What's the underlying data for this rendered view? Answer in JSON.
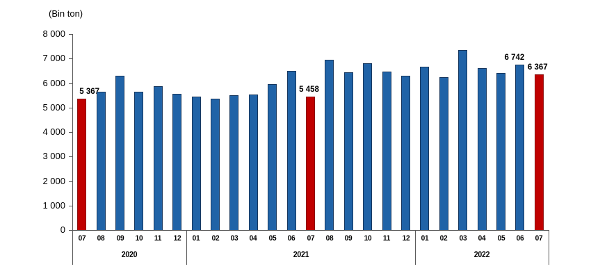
{
  "colors": {
    "bar_blue": "#2063a7",
    "bar_blue_border": "#17375e",
    "bar_red": "#c00000",
    "bar_red_border": "#8b1010",
    "axis": "#595959",
    "text": "#000000"
  },
  "chart_data": {
    "type": "bar",
    "title": "",
    "unit_label": "(Bin ton)",
    "xlabel": "",
    "ylabel": "",
    "ylim": [
      0,
      8000
    ],
    "ytick_step": 1000,
    "ytick_labels": [
      "0",
      "1 000",
      "2 000",
      "3 000",
      "4 000",
      "5 000",
      "6 000",
      "7 000",
      "8 000"
    ],
    "grid": false,
    "legend": "none",
    "year_groups": [
      {
        "label": "2020",
        "count": 6
      },
      {
        "label": "2021",
        "count": 12
      },
      {
        "label": "2022",
        "count": 7
      }
    ],
    "points": [
      {
        "year": "2020",
        "month": "07",
        "value": 5367,
        "highlight": true,
        "label": "5 367"
      },
      {
        "year": "2020",
        "month": "08",
        "value": 5650,
        "highlight": false,
        "label": null
      },
      {
        "year": "2020",
        "month": "09",
        "value": 6310,
        "highlight": false,
        "label": null
      },
      {
        "year": "2020",
        "month": "10",
        "value": 5650,
        "highlight": false,
        "label": null
      },
      {
        "year": "2020",
        "month": "11",
        "value": 5860,
        "highlight": false,
        "label": null
      },
      {
        "year": "2020",
        "month": "12",
        "value": 5560,
        "highlight": false,
        "label": null
      },
      {
        "year": "2021",
        "month": "01",
        "value": 5460,
        "highlight": false,
        "label": null
      },
      {
        "year": "2021",
        "month": "02",
        "value": 5360,
        "highlight": false,
        "label": null
      },
      {
        "year": "2021",
        "month": "03",
        "value": 5500,
        "highlight": false,
        "label": null
      },
      {
        "year": "2021",
        "month": "04",
        "value": 5530,
        "highlight": false,
        "label": null
      },
      {
        "year": "2021",
        "month": "05",
        "value": 5950,
        "highlight": false,
        "label": null
      },
      {
        "year": "2021",
        "month": "06",
        "value": 6500,
        "highlight": false,
        "label": null
      },
      {
        "year": "2021",
        "month": "07",
        "value": 5458,
        "highlight": true,
        "label": "5 458"
      },
      {
        "year": "2021",
        "month": "08",
        "value": 6950,
        "highlight": false,
        "label": null
      },
      {
        "year": "2021",
        "month": "09",
        "value": 6430,
        "highlight": false,
        "label": null
      },
      {
        "year": "2021",
        "month": "10",
        "value": 6800,
        "highlight": false,
        "label": null
      },
      {
        "year": "2021",
        "month": "11",
        "value": 6460,
        "highlight": false,
        "label": null
      },
      {
        "year": "2021",
        "month": "12",
        "value": 6290,
        "highlight": false,
        "label": null
      },
      {
        "year": "2022",
        "month": "01",
        "value": 6670,
        "highlight": false,
        "label": null
      },
      {
        "year": "2022",
        "month": "02",
        "value": 6240,
        "highlight": false,
        "label": null
      },
      {
        "year": "2022",
        "month": "03",
        "value": 7350,
        "highlight": false,
        "label": null
      },
      {
        "year": "2022",
        "month": "04",
        "value": 6610,
        "highlight": false,
        "label": null
      },
      {
        "year": "2022",
        "month": "05",
        "value": 6400,
        "highlight": false,
        "label": null
      },
      {
        "year": "2022",
        "month": "06",
        "value": 6742,
        "highlight": false,
        "label": "6 742"
      },
      {
        "year": "2022",
        "month": "07",
        "value": 6367,
        "highlight": true,
        "label": "6 367"
      }
    ]
  }
}
